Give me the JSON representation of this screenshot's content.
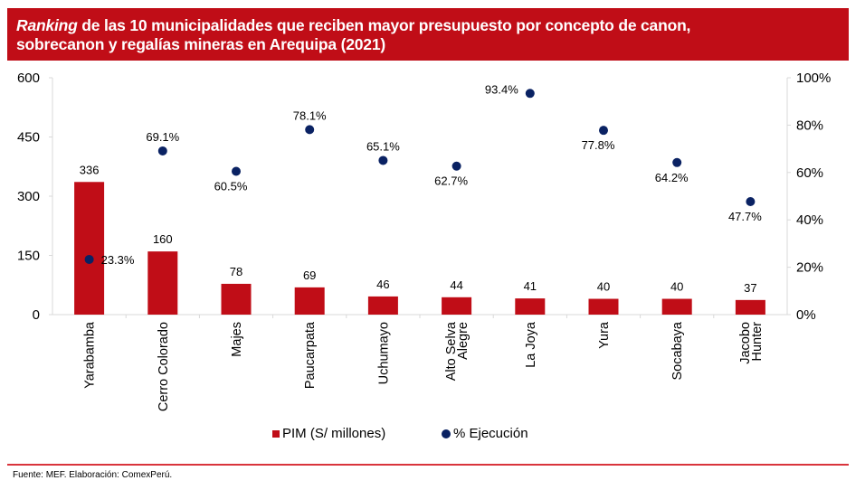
{
  "header": {
    "title_italic": "Ranking",
    "title_rest_line1": " de las 10 municipalidades que reciben mayor presupuesto por concepto de canon,",
    "title_line2": "sobrecanon y regalías mineras en Arequipa (2021)"
  },
  "chart_data": {
    "type": "bar",
    "title": "Ranking de las 10 municipalidades que reciben mayor presupuesto por concepto de canon, sobrecanon y regalías mineras en Arequipa (2021)",
    "categories": [
      "Yarabamba",
      "Cerro Colorado",
      "Majes",
      "Paucarpata",
      "Uchumayo",
      "Alto Selva Alegre",
      "La Joya",
      "Yura",
      "Socabaya",
      "Jacobo Hunter"
    ],
    "category_lines": [
      [
        "Yarabamba"
      ],
      [
        "Cerro Colorado"
      ],
      [
        "Majes"
      ],
      [
        "Paucarpata"
      ],
      [
        "Uchumayo"
      ],
      [
        "Alto Selva",
        "Alegre"
      ],
      [
        "La Joya"
      ],
      [
        "Yura"
      ],
      [
        "Socabaya"
      ],
      [
        "Jacobo",
        "Hunter"
      ]
    ],
    "series": [
      {
        "name": "PIM (S/ millones)",
        "type": "bar",
        "axis": "left",
        "color": "#c00d17",
        "values": [
          336,
          160,
          78,
          69,
          46,
          44,
          41,
          40,
          40,
          37
        ],
        "labels": [
          "336",
          "160",
          "78",
          "69",
          "46",
          "44",
          "41",
          "40",
          "40",
          "37"
        ]
      },
      {
        "name": "% Ejecución",
        "type": "scatter",
        "axis": "right",
        "color": "#0a2263",
        "values": [
          23.3,
          69.1,
          60.5,
          78.1,
          65.1,
          62.7,
          93.4,
          77.8,
          64.2,
          47.7
        ],
        "labels": [
          "23.3%",
          "69.1%",
          "60.5%",
          "78.1%",
          "65.1%",
          "62.7%",
          "93.4%",
          "77.8%",
          "64.2%",
          "47.7%"
        ],
        "label_positions": [
          "right",
          "above",
          "below",
          "above",
          "above",
          "below",
          "left",
          "below",
          "below",
          "below"
        ]
      }
    ],
    "y_left": {
      "ylim": [
        0,
        600
      ],
      "ticks": [
        0,
        150,
        300,
        450,
        600
      ],
      "tick_labels": [
        "0",
        "150",
        "300",
        "450",
        "600"
      ]
    },
    "y_right": {
      "ylim": [
        0,
        100
      ],
      "ticks": [
        0,
        20,
        40,
        60,
        80,
        100
      ],
      "tick_labels": [
        "0%",
        "20%",
        "40%",
        "60%",
        "80%",
        "100%"
      ]
    },
    "xlabel": "",
    "ylabel": "",
    "grid": false,
    "legend": {
      "placement": "bottom-center",
      "entries": [
        "PIM (S/ millones)",
        "% Ejecución"
      ]
    }
  },
  "legend": {
    "bar_label": "PIM (S/ millones)",
    "dot_label": "% Ejecución"
  },
  "footer": {
    "source": "Fuente: MEF. Elaboración: ComexPerú."
  }
}
